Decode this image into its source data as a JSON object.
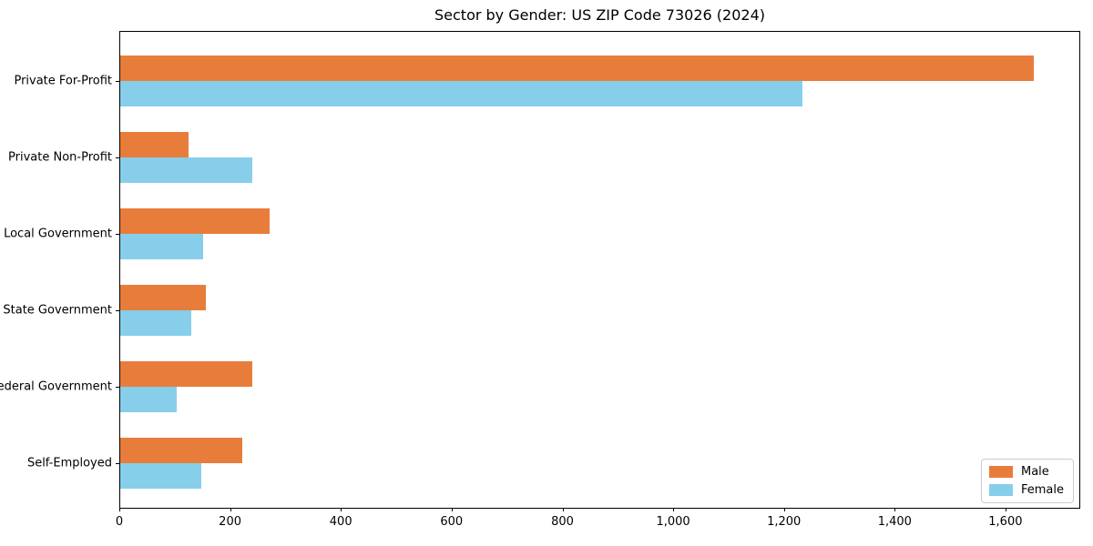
{
  "chart_data": {
    "type": "bar",
    "orientation": "horizontal",
    "title": "Sector by Gender: US ZIP Code 73026 (2024)",
    "categories": [
      "Private For-Profit",
      "Private Non-Profit",
      "Local Government",
      "State Government",
      "Federal Government",
      "Self-Employed"
    ],
    "series": [
      {
        "name": "Male",
        "color": "#e87d3b",
        "values": [
          1650,
          123,
          270,
          155,
          238,
          220
        ]
      },
      {
        "name": "Female",
        "color": "#87ceeb",
        "values": [
          1232,
          238,
          149,
          128,
          102,
          147
        ]
      }
    ],
    "xlabel": "",
    "ylabel": "",
    "xlim": [
      0,
      1735
    ],
    "xticks": [
      {
        "value": 0,
        "label": "0"
      },
      {
        "value": 200,
        "label": "200"
      },
      {
        "value": 400,
        "label": "400"
      },
      {
        "value": 600,
        "label": "600"
      },
      {
        "value": 800,
        "label": "800"
      },
      {
        "value": 1000,
        "label": "1,000"
      },
      {
        "value": 1200,
        "label": "1,200"
      },
      {
        "value": 1400,
        "label": "1,400"
      },
      {
        "value": 1600,
        "label": "1,600"
      }
    ],
    "grid": false,
    "legend_position": "lower right"
  }
}
